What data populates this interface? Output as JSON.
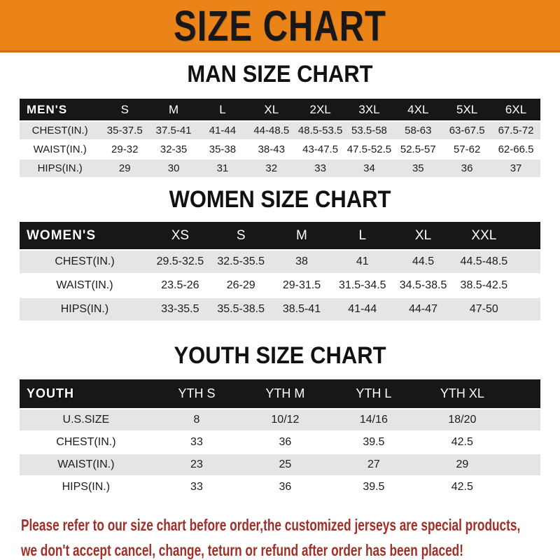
{
  "banner": {
    "title": "SIZE CHART"
  },
  "colors": {
    "banner_bg": "#EA8318",
    "header_bar_bg": "#171717",
    "header_bar_text": "#FFFFFF",
    "row_alt_bg": "#E5E5E5",
    "body_text": "#1C1C1C",
    "disclaimer_text": "#A22F27"
  },
  "sections": [
    {
      "id": "mens",
      "heading": "MAN SIZE CHART",
      "header_label": "MEN'S",
      "columns": [
        "S",
        "M",
        "L",
        "XL",
        "2XL",
        "3XL",
        "4XL",
        "5XL",
        "6XL"
      ],
      "rows": [
        {
          "label": "CHEST(IN.)",
          "values": [
            "35-37.5",
            "37.5-41",
            "41-44",
            "44-48.5",
            "48.5-53.5",
            "53.5-58",
            "58-63",
            "63-67.5",
            "67.5-72"
          ]
        },
        {
          "label": "WAIST(IN.)",
          "values": [
            "29-32",
            "32-35",
            "35-38",
            "38-43",
            "43-47.5",
            "47.5-52.5",
            "52.5-57",
            "57-62",
            "62-66.5"
          ]
        },
        {
          "label": "HIPS(IN.)",
          "values": [
            "29",
            "30",
            "31",
            "32",
            "33",
            "34",
            "35",
            "36",
            "37"
          ]
        }
      ]
    },
    {
      "id": "womens",
      "heading": "WOMEN SIZE CHART",
      "header_label": "WOMEN'S",
      "columns": [
        "XS",
        "S",
        "M",
        "L",
        "XL",
        "XXL"
      ],
      "rows": [
        {
          "label": "CHEST(IN.)",
          "values": [
            "29.5-32.5",
            "32.5-35.5",
            "38",
            "41",
            "44.5",
            "44.5-48.5"
          ]
        },
        {
          "label": "WAIST(IN.)",
          "values": [
            "23.5-26",
            "26-29",
            "29-31.5",
            "31.5-34.5",
            "34.5-38.5",
            "38.5-42.5"
          ]
        },
        {
          "label": "HIPS(IN.)",
          "values": [
            "33-35.5",
            "35.5-38.5",
            "38.5-41",
            "41-44",
            "44-47",
            "47-50"
          ]
        }
      ]
    },
    {
      "id": "youth",
      "heading": "YOUTH SIZE CHART",
      "header_label": "YOUTH",
      "columns": [
        "YTH S",
        "YTH M",
        "YTH L",
        "YTH XL"
      ],
      "rows": [
        {
          "label": "U.S.SIZE",
          "values": [
            "8",
            "10/12",
            "14/16",
            "18/20"
          ]
        },
        {
          "label": "CHEST(IN.)",
          "values": [
            "33",
            "36",
            "39.5",
            "42.5"
          ]
        },
        {
          "label": "WAIST(IN.)",
          "values": [
            "23",
            "25",
            "27",
            "29"
          ]
        },
        {
          "label": "HIPS(IN.)",
          "values": [
            "33",
            "36",
            "39.5",
            "42.5"
          ]
        }
      ]
    }
  ],
  "disclaimer": {
    "line1": "Please refer to our size chart before order,the customized jerseys are special products,",
    "line2": "we don't accept cancel, change, teturn or refund after order has been placed!"
  }
}
